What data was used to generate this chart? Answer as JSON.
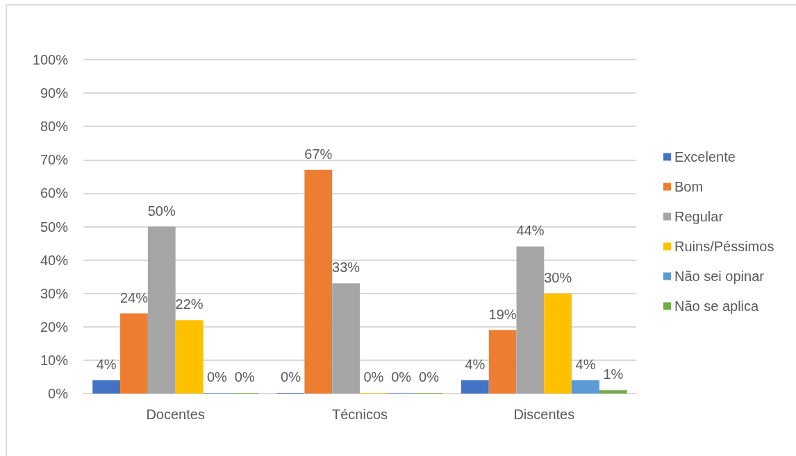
{
  "chart_data": {
    "type": "bar",
    "categories": [
      "Docentes",
      "Técnicos",
      "Discentes"
    ],
    "series": [
      {
        "name": "Excelente",
        "color": "#4472c4",
        "values": [
          4,
          0,
          4
        ],
        "value_labels": [
          "4%",
          "0%",
          "4%"
        ]
      },
      {
        "name": "Bom",
        "color": "#ed7d31",
        "values": [
          24,
          67,
          19
        ],
        "value_labels": [
          "24%",
          "67%",
          "19%"
        ]
      },
      {
        "name": "Regular",
        "color": "#a5a5a5",
        "values": [
          50,
          33,
          44
        ],
        "value_labels": [
          "50%",
          "33%",
          "44%"
        ]
      },
      {
        "name": "Ruins/Péssimos",
        "color": "#ffc000",
        "values": [
          22,
          0,
          30
        ],
        "value_labels": [
          "22%",
          "0%",
          "30%"
        ]
      },
      {
        "name": "Não sei opinar",
        "color": "#5b9bd5",
        "values": [
          0,
          0,
          4
        ],
        "value_labels": [
          "0%",
          "0%",
          "4%"
        ]
      },
      {
        "name": "Não se aplica",
        "color": "#70ad47",
        "values": [
          0,
          0,
          1
        ],
        "value_labels": [
          "0%",
          "0%",
          "1%"
        ]
      }
    ],
    "ylim": [
      0,
      100
    ],
    "yticks": [
      {
        "value": 0,
        "label": "0%"
      },
      {
        "value": 10,
        "label": "10%"
      },
      {
        "value": 20,
        "label": "20%"
      },
      {
        "value": 30,
        "label": "30%"
      },
      {
        "value": 40,
        "label": "40%"
      },
      {
        "value": 50,
        "label": "50%"
      },
      {
        "value": 60,
        "label": "60%"
      },
      {
        "value": 70,
        "label": "70%"
      },
      {
        "value": 80,
        "label": "80%"
      },
      {
        "value": 90,
        "label": "90%"
      },
      {
        "value": 100,
        "label": "100%"
      }
    ],
    "grid": "y",
    "legend": "right"
  }
}
